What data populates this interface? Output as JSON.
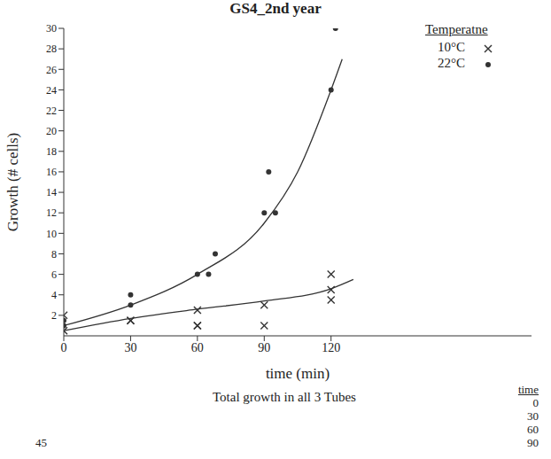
{
  "chart_data": {
    "type": "scatter",
    "title": "GS4_2nd year",
    "x_label": "time (min)",
    "y_label": "Growth (# cells)",
    "legend_title": "Temperatne",
    "legend": "top-right",
    "xlim": [
      0,
      210
    ],
    "xticks": [
      0,
      30,
      60,
      90,
      120
    ],
    "ylim": [
      0,
      30
    ],
    "yticks": [
      2,
      4,
      6,
      8,
      10,
      12,
      14,
      16,
      18,
      20,
      22,
      24,
      26,
      28,
      30
    ],
    "series": [
      {
        "name": "10°C",
        "marker": "x",
        "color": "#333333",
        "x": [
          0,
          0,
          30,
          30,
          60,
          60,
          60,
          90,
          90,
          120,
          120,
          120
        ],
        "values": [
          0.5,
          2,
          1.5,
          1.5,
          1,
          1,
          2.5,
          1,
          3,
          3.5,
          4.5,
          6
        ],
        "fit": {
          "x": [
            0,
            30,
            60,
            90,
            120,
            130
          ],
          "values": [
            0.5,
            1.7,
            2.6,
            3.4,
            4.6,
            5.5
          ]
        }
      },
      {
        "name": "22°C",
        "marker": "circle",
        "color": "#333333",
        "x": [
          0,
          0,
          30,
          30,
          60,
          65,
          68,
          90,
          95,
          92,
          120,
          122
        ],
        "values": [
          1,
          1.5,
          3,
          4,
          6,
          6,
          8,
          12,
          12,
          16,
          24,
          30
        ],
        "fit": {
          "x": [
            0,
            30,
            60,
            90,
            105,
            120,
            125
          ],
          "values": [
            1,
            3,
            6,
            11,
            16,
            24,
            27
          ]
        }
      }
    ],
    "second_chart": {
      "title": "Total growth in all 3 Tubes",
      "yticks": [
        45
      ],
      "table_header": "time",
      "table_rows": [
        0,
        30,
        60,
        90
      ]
    }
  }
}
